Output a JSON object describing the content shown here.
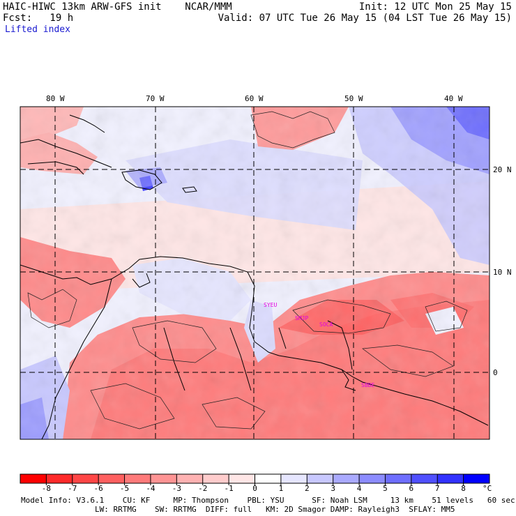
{
  "header": {
    "model_line": "HAIC-HIWC 13km ARW-GFS init    NCAR/MMM",
    "init_line": "Init: 12 UTC Mon 25 May 15",
    "fcst_line": "Fcst:   19 h",
    "valid_line": "Valid: 07 UTC Tue 26 May 15 (04 LST Tue 26 May 15)",
    "field": "Lifted index"
  },
  "axes": {
    "longitudes": [
      "80 W",
      "70 W",
      "60 W",
      "50 W",
      "40 W"
    ],
    "latitudes": [
      "20 N",
      "10 N",
      "0"
    ]
  },
  "stations": [
    "SYEU",
    "SMJP",
    "SOCA",
    "SBBE"
  ],
  "colorbar": {
    "unit": "°C",
    "ticks": [
      "-8",
      "-7",
      "-6",
      "-5",
      "-4",
      "-3",
      "-2",
      "-1",
      "0",
      "1",
      "2",
      "3",
      "4",
      "5",
      "6",
      "7",
      "8"
    ],
    "colors": [
      "#ff0000",
      "#ff2a2a",
      "#ff4646",
      "#ff6060",
      "#ff7a7a",
      "#ff9494",
      "#ffb2b2",
      "#ffcccc",
      "#ffe6e6",
      "#ffffff",
      "#e6e6ff",
      "#c8c8ff",
      "#aaaaff",
      "#8c8cff",
      "#6e6eff",
      "#5050ff",
      "#3232ff",
      "#0000ff"
    ]
  },
  "footer": {
    "line1": "Model Info: V3.6.1    CU: KF     MP: Thompson    PBL: YSU      SF: Noah LSM     13 km    51 levels   60 sec",
    "line2": "                LW: RRTMG    SW: RRTMG  DIFF: full   KM: 2D Smagor DAMP: Rayleigh3  SFLAY: MM5"
  }
}
